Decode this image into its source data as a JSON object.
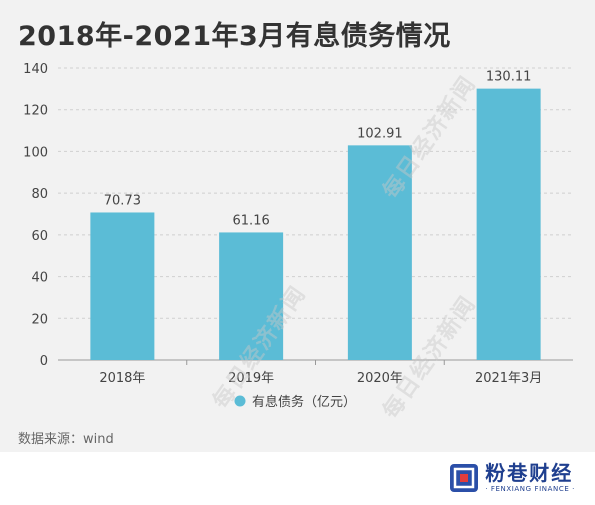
{
  "title": "2018年-2021年3月有息债务情况",
  "source": "数据来源：wind",
  "watermark": "每日经济新闻",
  "logo": {
    "name": "粉巷财经",
    "sub": "· FENXIANG FINANCE ·"
  },
  "colors": {
    "bar": "#5bbcd6",
    "grid": "#d0d0d0",
    "axis": "#999999",
    "text": "#444444"
  },
  "chart_data": {
    "type": "bar",
    "categories": [
      "2018年",
      "2019年",
      "2020年",
      "2021年3月"
    ],
    "series": [
      {
        "name": "有息债务（亿元）",
        "values": [
          70.73,
          61.16,
          102.91,
          130.11
        ]
      }
    ],
    "data_labels": [
      "70.73",
      "61.16",
      "102.91",
      "130.11"
    ],
    "ylim": [
      0,
      140
    ],
    "yticks": [
      0,
      20,
      40,
      60,
      80,
      100,
      120,
      140
    ],
    "grid": true,
    "legend": "bottom-center"
  }
}
